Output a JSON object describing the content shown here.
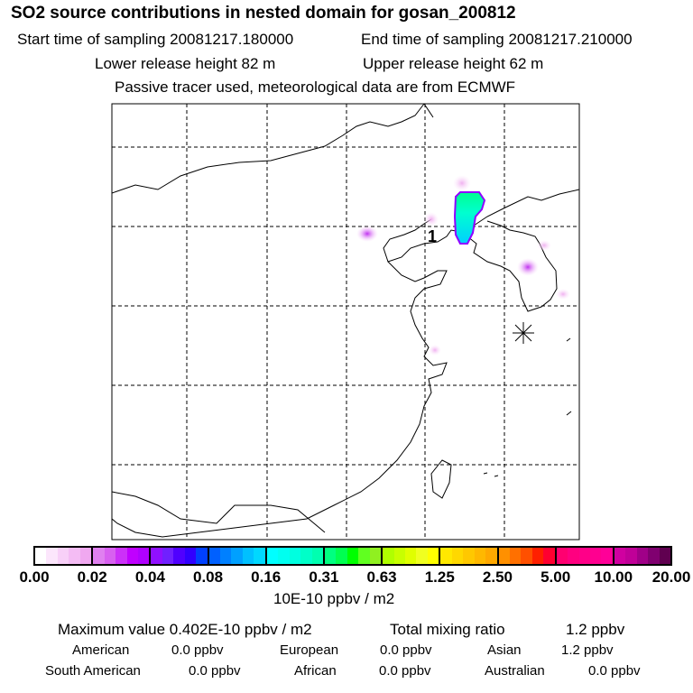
{
  "header": {
    "title": "SO2 source contributions in nested domain for gosan_200812",
    "start_time": "Start time of sampling 20081217.180000",
    "end_time": "End time of sampling 20081217.210000",
    "lower_height": "Lower release height   82 m",
    "upper_height": "Upper release height   62 m",
    "note": "Passive tracer used, meteorological data are from ECMWF"
  },
  "map": {
    "source_label": "1",
    "receptor_marker": "asterisk-icon"
  },
  "colorbar": {
    "ticks": [
      "0.00",
      "0.02",
      "0.04",
      "0.08",
      "0.16",
      "0.31",
      "0.63",
      "1.25",
      "2.50",
      "5.00",
      "10.00",
      "20.00"
    ],
    "unit": "10E-10 ppbv / m2",
    "segments": [
      [
        "#ffffff",
        "#fce6fc",
        "#f8d0f8",
        "#f4bcf4",
        "#f0a8f0"
      ],
      [
        "#e080f0",
        "#d860f0",
        "#cc30f8",
        "#c000ff",
        "#b000ff"
      ],
      [
        "#9010ff",
        "#7020ff",
        "#5000ff",
        "#3000ff",
        "#0040ff"
      ],
      [
        "#0060ff",
        "#0080ff",
        "#00a0ff",
        "#00c0ff",
        "#00d8ff"
      ],
      [
        "#00ffff",
        "#00fff0",
        "#00ffe0",
        "#00ffc8",
        "#00ffb0"
      ],
      [
        "#00ff80",
        "#00ff50",
        "#00ff00",
        "#60ff20",
        "#90f020"
      ],
      [
        "#b0ff00",
        "#c8ff00",
        "#e0ff00",
        "#f0ff20",
        "#ffff00"
      ],
      [
        "#ffe800",
        "#ffd800",
        "#ffc800",
        "#ffb800",
        "#ffa800"
      ],
      [
        "#ff9000",
        "#ff7000",
        "#ff5000",
        "#ff2000",
        "#ff0030"
      ],
      [
        "#ff0070",
        "#ff0080",
        "#ff0088",
        "#ff0090",
        "#ff0098"
      ],
      [
        "#d000a0",
        "#c00098",
        "#a00088",
        "#800070",
        "#600050"
      ]
    ]
  },
  "stats": {
    "max_label": "Maximum value  0.402E-10 ppbv / m2",
    "total_label": "Total mixing ratio",
    "total_value": "1.2 ppbv",
    "rows": [
      [
        [
          "American",
          "0.0 ppbv"
        ],
        [
          "European",
          "0.0 ppbv"
        ],
        [
          "Asian",
          "1.2 ppbv"
        ]
      ],
      [
        [
          "South American",
          "0.0 ppbv"
        ],
        [
          "African",
          "0.0 ppbv"
        ],
        [
          "Australian",
          "0.0 ppbv"
        ]
      ]
    ]
  }
}
